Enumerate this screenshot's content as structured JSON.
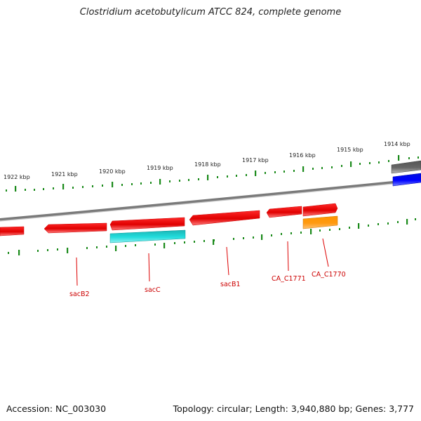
{
  "title": "Clostridium acetobutylicum ATCC 824, complete genome",
  "footer": {
    "accession": "Accession: NC_003030",
    "summary": "Topology: circular; Length: 3,940,880 bp; Genes: 3,777"
  },
  "colors": {
    "gene_red": "#ee0000",
    "gene_cyan": "#11cccc",
    "gene_orange": "#ff9900",
    "gene_blue": "#0011ee",
    "gene_gray": "#666666",
    "tick_green": "#1a8a1a",
    "backbone": "#888888"
  },
  "scale_labels": [
    "1922 kbp",
    "1921 kbp",
    "1920 kbp",
    "1919 kbp",
    "1918 kbp",
    "1917 kbp",
    "1916 kbp",
    "1915 kbp",
    "1914 kbp"
  ],
  "gene_labels": [
    "sacB2",
    "sacC",
    "sacB1",
    "CA_C1771",
    "CA_C1770"
  ],
  "genes": [
    {
      "name": "",
      "color": "red",
      "strand": "forward"
    },
    {
      "name": "sacB2",
      "color": "red",
      "strand": "reverse"
    },
    {
      "name": "",
      "color": "red",
      "strand": "reverse"
    },
    {
      "name": "sacC",
      "color": "cyan",
      "strand": "reverse"
    },
    {
      "name": "sacB1",
      "color": "red",
      "strand": "reverse"
    },
    {
      "name": "CA_C1771",
      "color": "red",
      "strand": "reverse"
    },
    {
      "name": "CA_C1770",
      "color": "red",
      "strand": "forward"
    },
    {
      "name": "",
      "color": "orange",
      "strand": "forward"
    },
    {
      "name": "",
      "color": "gray",
      "strand": "forward"
    },
    {
      "name": "",
      "color": "blue",
      "strand": "forward"
    }
  ]
}
